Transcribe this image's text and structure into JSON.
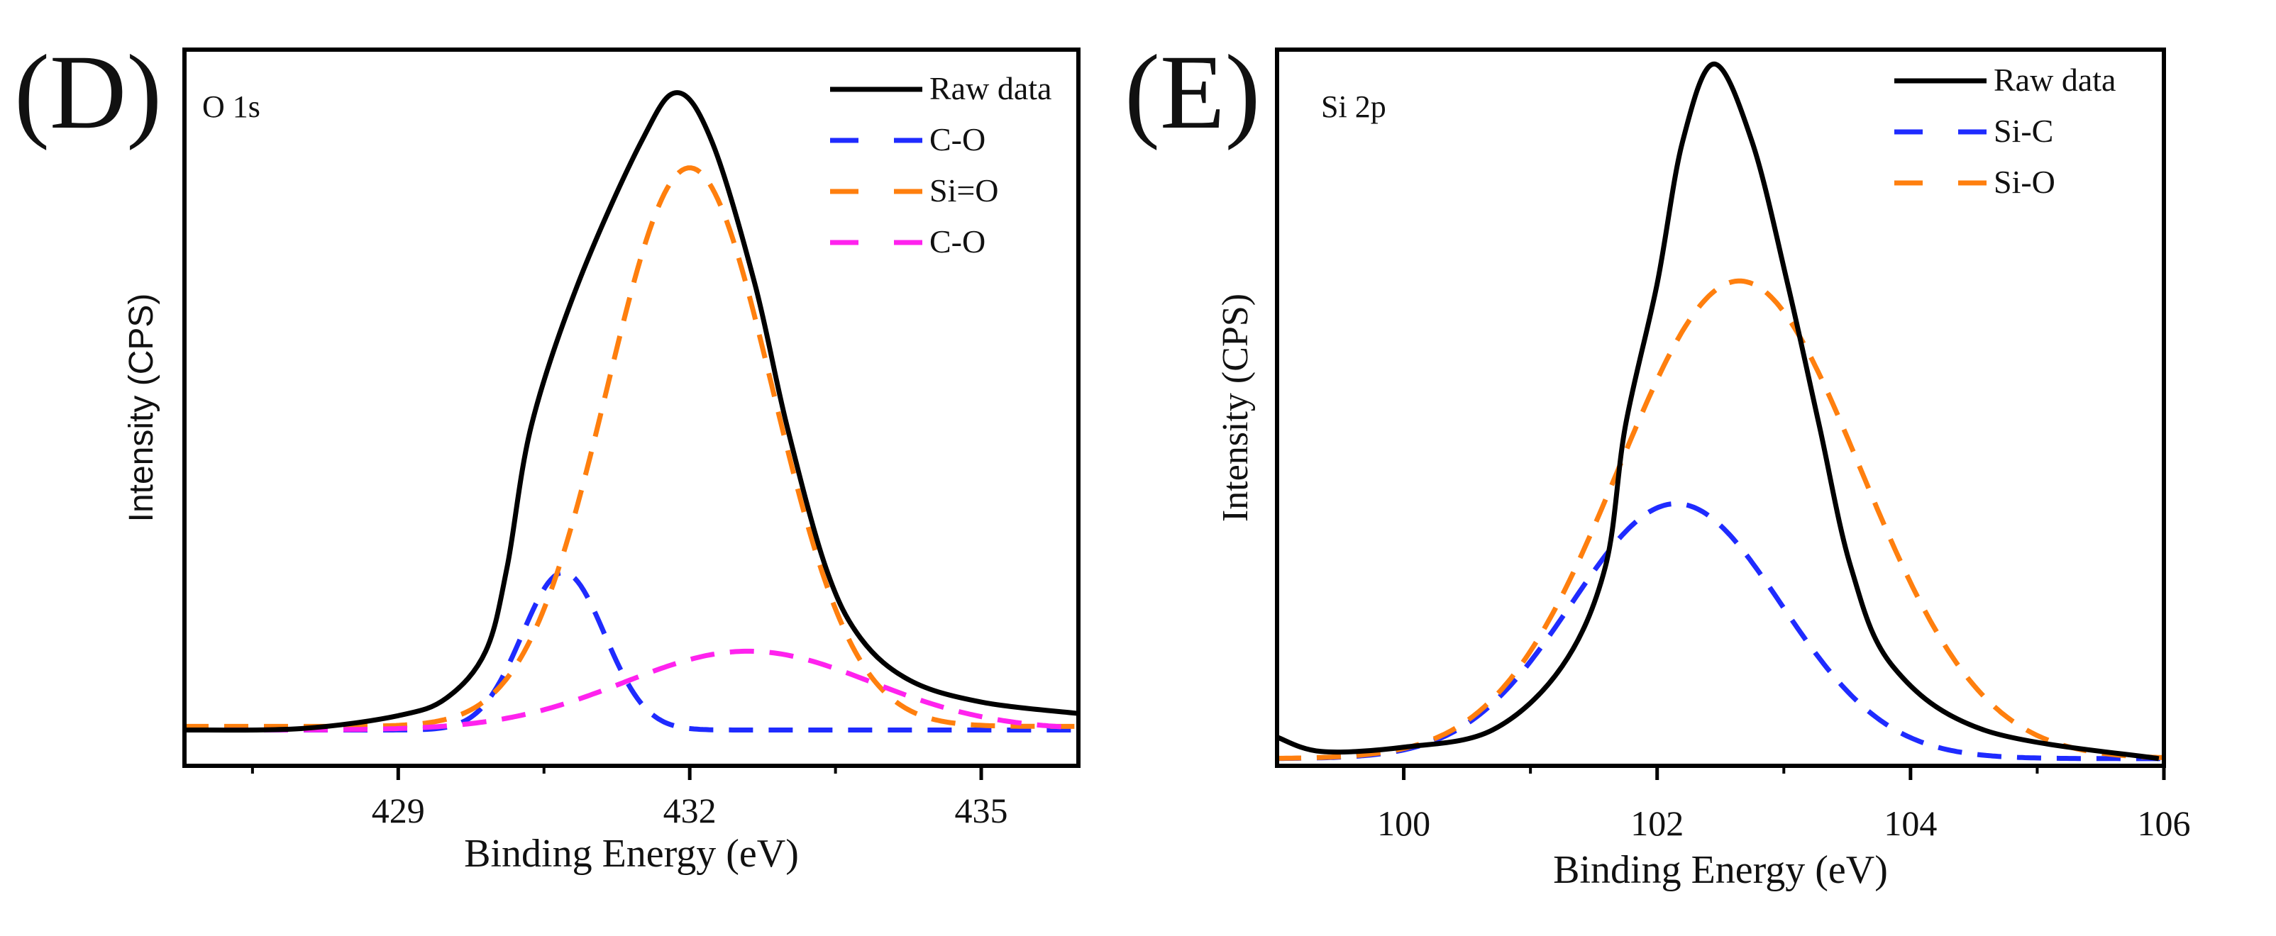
{
  "chart_data": [
    {
      "type": "line",
      "panel_label": "(D)",
      "annotation": "O 1s",
      "xlabel": "Binding Energy (eV)",
      "ylabel": "Intensity (CPS)",
      "xlim": [
        426.8,
        436.0
      ],
      "ylim": [
        0,
        1
      ],
      "xticks": [
        429,
        432,
        435
      ],
      "xtick_labels": [
        "429",
        "432",
        "435"
      ],
      "minor_xticks": [
        427.5,
        430.5,
        433.5
      ],
      "legend_position": "top-right",
      "grid": false,
      "series": [
        {
          "name": "Raw data",
          "color": "#000000",
          "style": "solid",
          "points": [
            [
              426.8,
              0.05
            ],
            [
              428,
              0.052
            ],
            [
              429,
              0.07
            ],
            [
              429.5,
              0.095
            ],
            [
              429.9,
              0.16
            ],
            [
              430.12,
              0.277
            ],
            [
              430.37,
              0.475
            ],
            [
              430.85,
              0.673
            ],
            [
              431.5,
              0.871
            ],
            [
              431.87,
              0.94
            ],
            [
              432.23,
              0.871
            ],
            [
              432.67,
              0.673
            ],
            [
              433.0,
              0.475
            ],
            [
              433.4,
              0.277
            ],
            [
              433.76,
              0.178
            ],
            [
              434.27,
              0.119
            ],
            [
              435.0,
              0.089
            ],
            [
              436.0,
              0.073
            ]
          ]
        },
        {
          "name": "C-O",
          "color": "#1f2bff",
          "style": "dashed",
          "peak": {
            "center": 430.7,
            "amplitude": 0.22,
            "fwhm": 1.0,
            "baseline": 0.05
          }
        },
        {
          "name": "Si=O",
          "color": "#ff7f0e",
          "style": "dashed",
          "peak": {
            "center": 432.0,
            "amplitude": 0.78,
            "fwhm": 2.0,
            "baseline": 0.055
          }
        },
        {
          "name": "C-O",
          "color": "#ff22ee",
          "style": "dashed",
          "peak": {
            "center": 432.6,
            "amplitude": 0.11,
            "fwhm": 3.0,
            "baseline": 0.05
          }
        }
      ]
    },
    {
      "type": "line",
      "panel_label": "(E)",
      "annotation": "Si 2p",
      "xlabel": "Binding Energy (eV)",
      "ylabel": "Intensity (CPS)",
      "xlim": [
        99.0,
        106.0
      ],
      "ylim": [
        0,
        1
      ],
      "xticks": [
        100,
        102,
        104,
        106
      ],
      "xtick_labels": [
        "100",
        "102",
        "104",
        "106"
      ],
      "minor_xticks": [
        99,
        101,
        103,
        105
      ],
      "legend_position": "top-right",
      "grid": false,
      "series": [
        {
          "name": "Raw data",
          "color": "#000000",
          "style": "solid",
          "points": [
            [
              99.0,
              0.04
            ],
            [
              99.35,
              0.02
            ],
            [
              100.0,
              0.026
            ],
            [
              100.7,
              0.05
            ],
            [
              101.25,
              0.139
            ],
            [
              101.59,
              0.277
            ],
            [
              101.75,
              0.475
            ],
            [
              102.0,
              0.673
            ],
            [
              102.2,
              0.871
            ],
            [
              102.45,
              0.98
            ],
            [
              102.75,
              0.871
            ],
            [
              103.03,
              0.673
            ],
            [
              103.28,
              0.475
            ],
            [
              103.53,
              0.277
            ],
            [
              103.86,
              0.139
            ],
            [
              104.58,
              0.05
            ],
            [
              105.96,
              0.01
            ]
          ]
        },
        {
          "name": "Si-C",
          "color": "#1f2bff",
          "style": "dashed",
          "peak": {
            "center": 102.15,
            "amplitude": 0.356,
            "fwhm": 1.95,
            "baseline": 0.01
          }
        },
        {
          "name": "Si-O",
          "color": "#ff7f0e",
          "style": "dashed",
          "peak": {
            "center": 102.65,
            "amplitude": 0.667,
            "fwhm": 2.25,
            "baseline": 0.01
          }
        }
      ]
    }
  ]
}
